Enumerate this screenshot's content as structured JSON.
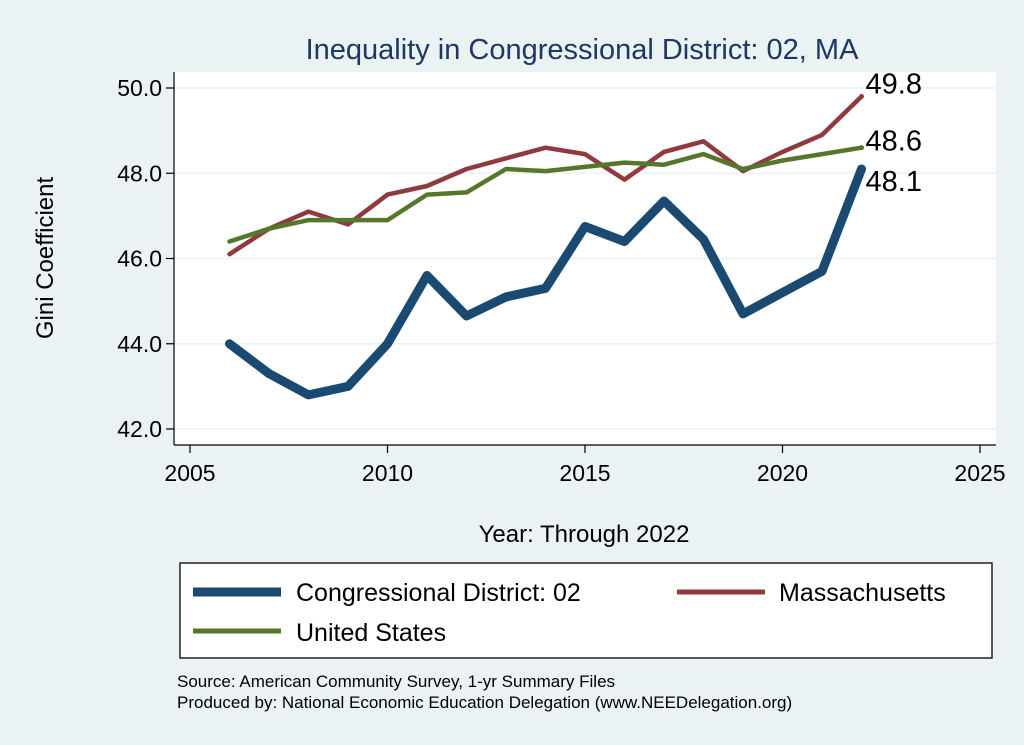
{
  "chart_data": {
    "type": "line",
    "title": "Inequality in Congressional District:  02, MA",
    "xlabel": "Year: Through 2022",
    "ylabel": "Gini Coefficient",
    "xlim": [
      2005,
      2025
    ],
    "ylim": [
      42.0,
      50.0
    ],
    "x_ticks": [
      "2005",
      "2010",
      "2015",
      "2020",
      "2025"
    ],
    "y_ticks": [
      "42.0",
      "44.0",
      "46.0",
      "48.0",
      "50.0"
    ],
    "grid": true,
    "legend_position": "bottom",
    "x": [
      2006,
      2007,
      2008,
      2009,
      2010,
      2011,
      2012,
      2013,
      2014,
      2015,
      2016,
      2017,
      2018,
      2019,
      2020,
      2021,
      2022
    ],
    "series": [
      {
        "name": "Congressional District:  02",
        "color": "#1a4a72",
        "values": [
          44.0,
          43.3,
          42.8,
          43.0,
          44.0,
          45.6,
          44.65,
          45.1,
          45.3,
          46.75,
          46.4,
          47.35,
          46.45,
          44.7,
          45.2,
          45.7,
          48.1
        ],
        "end_label": "48.1"
      },
      {
        "name": "Massachusetts",
        "color": "#903a3f",
        "values": [
          46.1,
          46.7,
          47.1,
          46.8,
          47.5,
          47.7,
          48.1,
          48.35,
          48.6,
          48.45,
          47.85,
          48.5,
          48.75,
          48.05,
          48.5,
          48.9,
          49.8
        ],
        "end_label": "49.8"
      },
      {
        "name": "United States",
        "color": "#55772c",
        "values": [
          46.4,
          46.7,
          46.9,
          46.9,
          46.9,
          47.5,
          47.55,
          48.1,
          48.05,
          48.15,
          48.25,
          48.2,
          48.45,
          48.1,
          48.3,
          48.45,
          48.6
        ],
        "end_label": "48.6"
      }
    ],
    "notes": [
      "Source: American Community Survey, 1-yr Summary Files",
      "Produced by: National Economic Education Delegation (www.NEEDelegation.org)"
    ]
  }
}
